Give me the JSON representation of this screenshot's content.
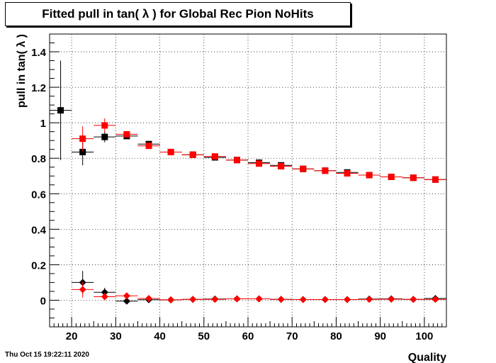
{
  "chart_data": {
    "type": "scatter",
    "title": "Fitted pull in tan( λ ) for Global Rec Pion NoHits",
    "xlabel": "Quality",
    "ylabel": "pull in tan( λ )",
    "xlim": [
      15,
      105
    ],
    "ylim": [
      -0.15,
      1.5
    ],
    "x_ticks": [
      20,
      30,
      40,
      50,
      60,
      70,
      80,
      90,
      100
    ],
    "y_ticks": [
      0,
      0.2,
      0.4,
      0.6,
      0.8,
      1,
      1.2,
      1.4
    ],
    "y_tick_labels": [
      "0",
      "0.2",
      "0.4",
      "0.6",
      "0.8",
      "1",
      "1.2",
      "1.4"
    ],
    "grid": true,
    "x_bin_half_width": 2.5,
    "x": [
      17.5,
      22.5,
      27.5,
      32.5,
      37.5,
      42.5,
      47.5,
      52.5,
      57.5,
      62.5,
      67.5,
      72.5,
      77.5,
      82.5,
      87.5,
      92.5,
      97.5,
      102.5
    ],
    "series": [
      {
        "color": "#000000",
        "marker": "square",
        "values": [
          1.07,
          0.835,
          0.92,
          0.925,
          0.88,
          0.835,
          0.82,
          0.805,
          0.79,
          0.775,
          0.76,
          0.74,
          0.73,
          0.72,
          0.705,
          0.695,
          0.69,
          0.68
        ],
        "errors": [
          0.28,
          0.075,
          0.03,
          0.015,
          0.012,
          0.01,
          0.008,
          0.008,
          0.007,
          0.007,
          0.007,
          0.006,
          0.006,
          0.006,
          0.006,
          0.006,
          0.006,
          0.006
        ]
      },
      {
        "color": "#ff0000",
        "marker": "square",
        "values": [
          null,
          0.91,
          0.985,
          0.935,
          0.87,
          0.835,
          0.82,
          0.81,
          0.79,
          0.77,
          0.755,
          0.74,
          0.73,
          0.715,
          0.705,
          0.695,
          0.69,
          0.68
        ],
        "errors": [
          null,
          0.07,
          0.04,
          0.015,
          0.012,
          0.01,
          0.008,
          0.008,
          0.007,
          0.007,
          0.007,
          0.006,
          0.006,
          0.006,
          0.006,
          0.006,
          0.006,
          0.006
        ]
      },
      {
        "color": "#000000",
        "marker": "diamond",
        "values": [
          null,
          0.1,
          0.045,
          -0.005,
          0.003,
          0.002,
          0.005,
          0.007,
          0.008,
          0.008,
          0.005,
          0.004,
          0.004,
          0.004,
          0.007,
          0.008,
          0.005,
          0.01
        ],
        "errors": [
          null,
          0.065,
          0.025,
          0.01,
          0.008,
          0.006,
          0.005,
          0.005,
          0.005,
          0.005,
          0.005,
          0.005,
          0.005,
          0.005,
          0.005,
          0.005,
          0.005,
          0.005
        ]
      },
      {
        "color": "#ff0000",
        "marker": "diamond",
        "values": [
          null,
          0.06,
          0.02,
          0.025,
          0.01,
          0.003,
          0.005,
          0.005,
          0.008,
          0.008,
          0.005,
          0.004,
          0.004,
          0.004,
          0.005,
          0.006,
          0.005,
          0.005
        ],
        "errors": [
          null,
          0.045,
          0.02,
          0.01,
          0.008,
          0.006,
          0.005,
          0.005,
          0.005,
          0.005,
          0.005,
          0.005,
          0.005,
          0.005,
          0.005,
          0.005,
          0.005,
          0.005
        ]
      }
    ]
  },
  "footer": {
    "date": "Thu Oct 15 19:22:11 2020"
  }
}
